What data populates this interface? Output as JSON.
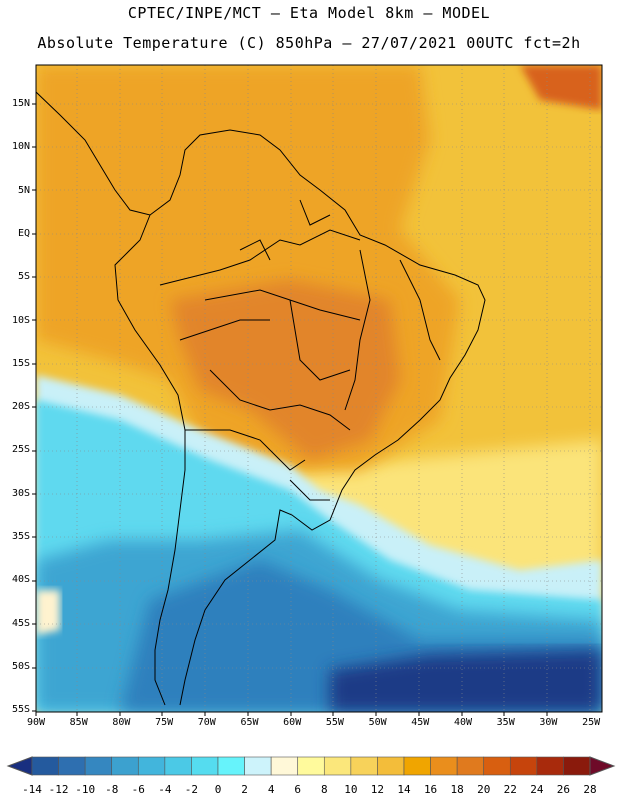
{
  "header": {
    "line1": "CPTEC/INPE/MCT  –  Eta Model 8km  – MODEL",
    "line2": "Absolute Temperature (C) 850hPa – 27/07/2021 00UTC fct=2h"
  },
  "lat_labels": [
    "15N",
    "10N",
    "5N",
    "EQ",
    "5S",
    "10S",
    "15S",
    "20S",
    "25S",
    "30S",
    "35S",
    "40S",
    "45S",
    "50S",
    "55S"
  ],
  "lon_labels": [
    "90W",
    "85W",
    "80W",
    "75W",
    "70W",
    "65W",
    "60W",
    "55W",
    "50W",
    "45W",
    "40W",
    "35W",
    "30W",
    "25W"
  ],
  "colorbar": {
    "labels": [
      "-14",
      "-12",
      "-10",
      "-8",
      "-6",
      "-4",
      "-2",
      "0",
      "2",
      "4",
      "6",
      "8",
      "10",
      "12",
      "14",
      "16",
      "18",
      "20",
      "22",
      "24",
      "26",
      "28"
    ],
    "colors": [
      "#192f80",
      "#245a9e",
      "#2e6fb0",
      "#3587c0",
      "#3ca1cf",
      "#42b5dc",
      "#4bc9e6",
      "#55dcef",
      "#66f3fb",
      "#cdf3fb",
      "#fff8d8",
      "#fffa9c",
      "#fbe77b",
      "#f7d25a",
      "#f3bd3a",
      "#f0a500",
      "#ea8e1c",
      "#e07a1e",
      "#d85f10",
      "#c6440c",
      "#a82a0c",
      "#8a1a0c",
      "#6e0a28"
    ]
  },
  "colors": {
    "ocean_warm": "#f2c33c",
    "land_warm": "#eea428",
    "hot": "#e28520",
    "cold": "#3ea5d2",
    "cyan": "#60dcf0",
    "deep": "#1f3a86"
  }
}
